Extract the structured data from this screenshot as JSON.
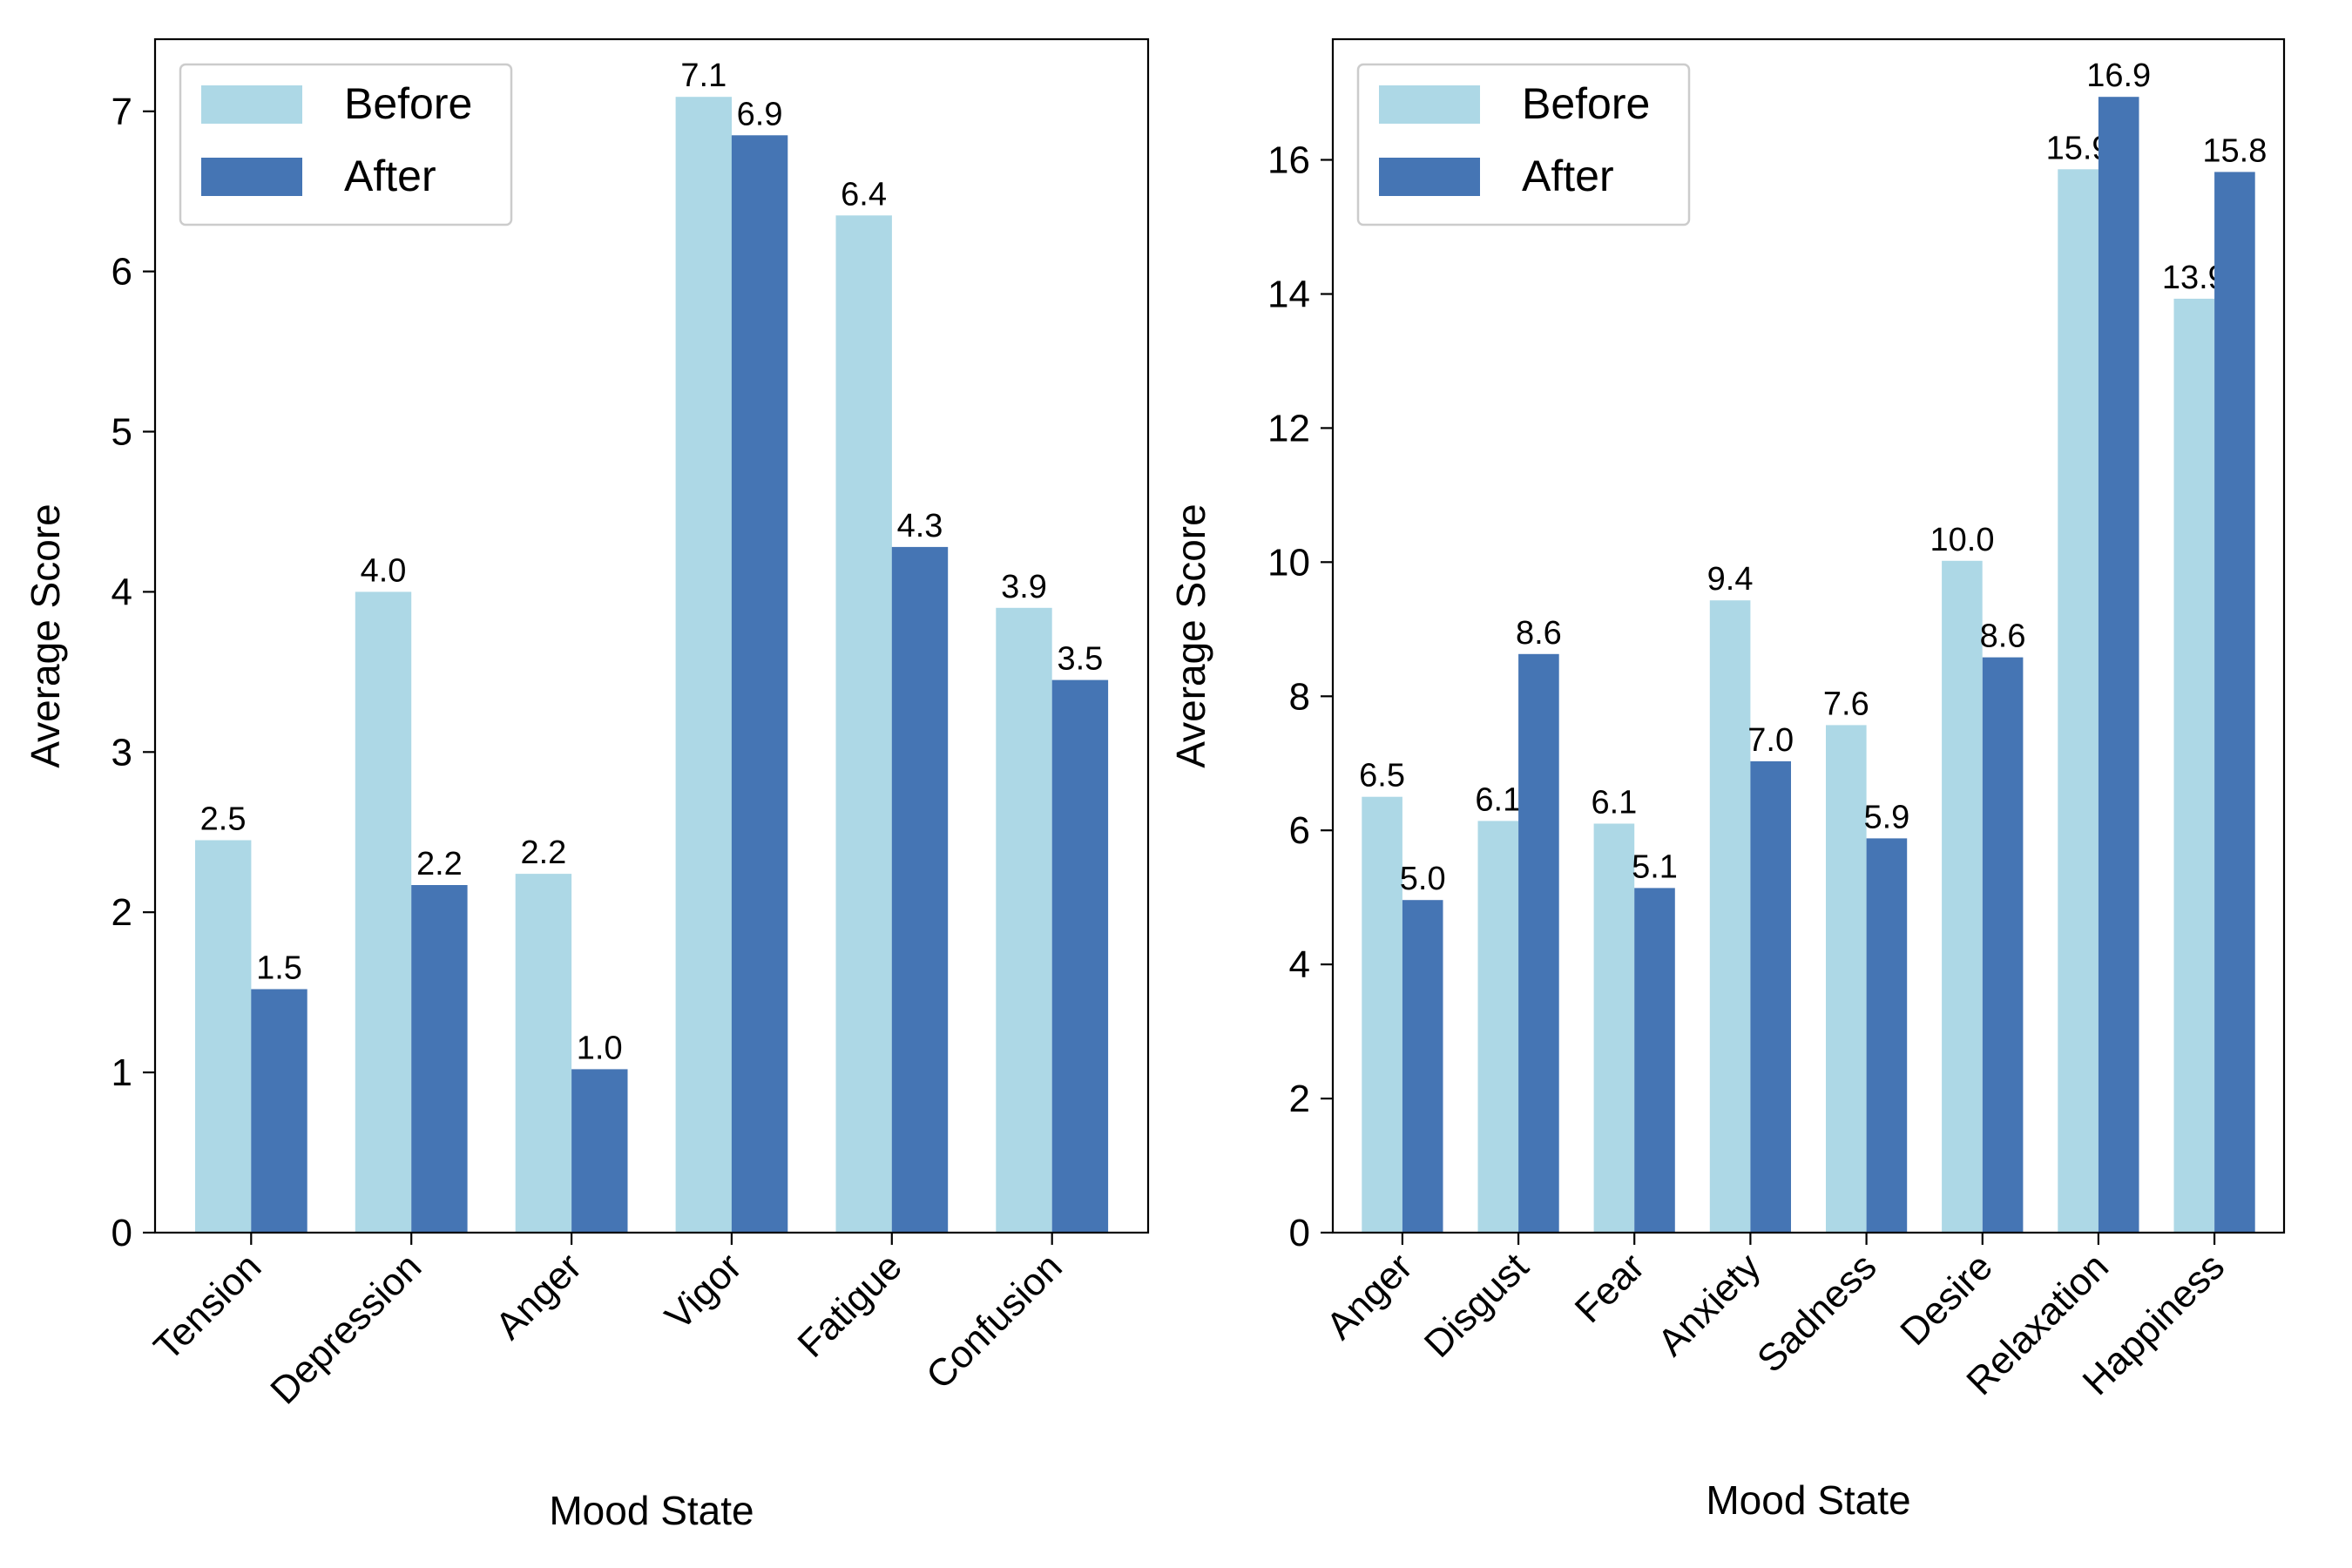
{
  "chart_data": [
    {
      "type": "bar",
      "xlabel": "Mood State",
      "ylabel": "Average Score",
      "categories": [
        "Tension",
        "Depression",
        "Anger",
        "Vigor",
        "Fatigue",
        "Confusion"
      ],
      "series": [
        {
          "name": "Before",
          "color": "#ADD8E6",
          "values": [
            2.45,
            4.0,
            2.24,
            7.09,
            6.35,
            3.9
          ],
          "labels": [
            "2.5",
            "4.0",
            "2.2",
            "7.1",
            "6.4",
            "3.9"
          ]
        },
        {
          "name": "After",
          "color": "#4575B4",
          "values": [
            1.52,
            2.17,
            1.02,
            6.85,
            4.28,
            3.45
          ],
          "labels": [
            "1.5",
            "2.2",
            "1.0",
            "6.9",
            "4.3",
            "3.5"
          ]
        }
      ],
      "ylim": [
        0,
        7.45
      ],
      "yticks": [
        0,
        1,
        2,
        3,
        4,
        5,
        6,
        7
      ],
      "legend": "top-left",
      "grid": false
    },
    {
      "type": "bar",
      "xlabel": "Mood State",
      "ylabel": "Average Score",
      "categories": [
        "Anger",
        "Disgust",
        "Fear",
        "Anxiety",
        "Sadness",
        "Desire",
        "Relaxation",
        "Happiness"
      ],
      "series": [
        {
          "name": "Before",
          "color": "#ADD8E6",
          "values": [
            6.5,
            6.14,
            6.1,
            9.43,
            7.57,
            10.02,
            15.86,
            13.93
          ],
          "labels": [
            "6.5",
            "6.1",
            "6.1",
            "9.4",
            "7.6",
            "10.0",
            "15.9",
            "13.9"
          ]
        },
        {
          "name": "After",
          "color": "#4575B4",
          "values": [
            4.96,
            8.63,
            5.14,
            7.03,
            5.88,
            8.58,
            16.94,
            15.82
          ],
          "labels": [
            "5.0",
            "8.6",
            "5.1",
            "7.0",
            "5.9",
            "8.6",
            "16.9",
            "15.8"
          ]
        }
      ],
      "ylim": [
        0,
        17.8
      ],
      "yticks": [
        0,
        2,
        4,
        6,
        8,
        10,
        12,
        14,
        16
      ],
      "legend": "top-left",
      "grid": false
    }
  ]
}
